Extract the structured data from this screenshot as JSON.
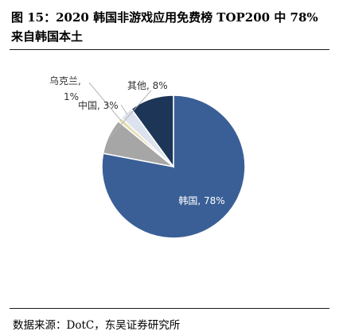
{
  "figure": {
    "title": "图 15：2020 韩国非游戏应用免费榜 TOP200 中 78%来自韩国本土",
    "source": "数据来源：DotC，东吴证券研究所"
  },
  "chart_data": {
    "type": "pie",
    "title": "",
    "slices": [
      {
        "name": "韩国",
        "value": 78,
        "label": "韩国, 78%",
        "color": "#3a5f96"
      },
      {
        "name": "其他",
        "value": 8,
        "label": "其他, 8%",
        "color": "#a6a6a6"
      },
      {
        "name": "乌克兰",
        "value": 1,
        "label_line1": "乌克兰,",
        "label_line2": "1%",
        "color": "#e4ddb4"
      },
      {
        "name": "中国",
        "value": 3,
        "label": "中国, 3%",
        "color": "#dce3ee"
      },
      {
        "name": "unlabeled",
        "value": 10,
        "label": "",
        "color": "#1d3557"
      }
    ],
    "legend": "none",
    "label_color_inside": "#ffffff",
    "label_color_outside": "#333333"
  }
}
